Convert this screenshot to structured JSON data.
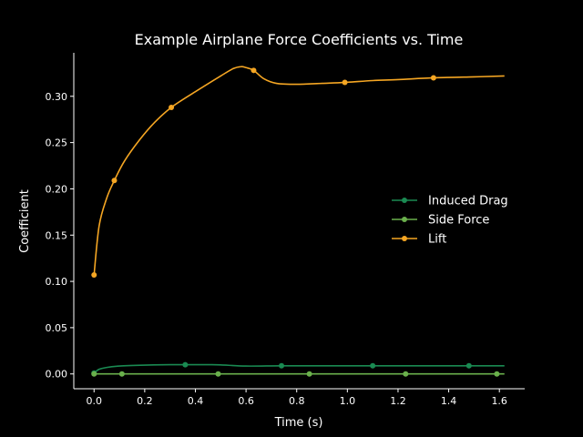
{
  "chart_data": {
    "type": "line",
    "title": "Example Airplane Force Coefficients vs. Time",
    "xlabel": "Time (s)",
    "ylabel": "Coefficient",
    "xlim": [
      -0.08,
      1.7
    ],
    "ylim": [
      -0.016,
      0.347
    ],
    "xticks": [
      0.0,
      0.2,
      0.4,
      0.6,
      0.8,
      1.0,
      1.2,
      1.4,
      1.6
    ],
    "xtick_labels": [
      "0.0",
      "0.2",
      "0.4",
      "0.6",
      "0.8",
      "1.0",
      "1.2",
      "1.4",
      "1.6"
    ],
    "yticks": [
      0.0,
      0.05,
      0.1,
      0.15,
      0.2,
      0.25,
      0.3
    ],
    "ytick_labels": [
      "0.00",
      "0.05",
      "0.10",
      "0.15",
      "0.20",
      "0.25",
      "0.30"
    ],
    "grid": false,
    "legend": "center-right",
    "series": [
      {
        "name": "Induced Drag",
        "color": "#1a8a52",
        "x": [
          0.0,
          0.02,
          0.05,
          0.1,
          0.2,
          0.3,
          0.36,
          0.45,
          0.5,
          0.6,
          0.74,
          0.9,
          1.1,
          1.3,
          1.48,
          1.62
        ],
        "y": [
          0.001,
          0.005,
          0.007,
          0.0085,
          0.0095,
          0.01,
          0.01,
          0.01,
          0.0098,
          0.0085,
          0.0088,
          0.0088,
          0.0088,
          0.0088,
          0.0088,
          0.0088
        ],
        "markers_x": [
          0.0,
          0.36,
          0.74,
          1.1,
          1.48
        ],
        "markers_y": [
          0.001,
          0.01,
          0.0088,
          0.0088,
          0.0088
        ]
      },
      {
        "name": "Side Force",
        "color": "#6ab04c",
        "x": [
          0.0,
          1.62
        ],
        "y": [
          0.0,
          0.0
        ],
        "markers_x": [
          0.0,
          0.11,
          0.49,
          0.85,
          1.23,
          1.59
        ],
        "markers_y": [
          0.0,
          0.0,
          0.0,
          0.0,
          0.0,
          0.0
        ]
      },
      {
        "name": "Lift",
        "color": "#f5a623",
        "x": [
          0.0,
          0.02,
          0.05,
          0.08,
          0.12,
          0.18,
          0.24,
          0.305,
          0.4,
          0.5,
          0.55,
          0.58,
          0.6,
          0.63,
          0.67,
          0.72,
          0.8,
          0.9,
          0.99,
          1.1,
          1.2,
          1.34,
          1.5,
          1.62
        ],
        "y": [
          0.107,
          0.16,
          0.19,
          0.209,
          0.23,
          0.253,
          0.272,
          0.288,
          0.305,
          0.322,
          0.33,
          0.332,
          0.331,
          0.328,
          0.319,
          0.314,
          0.313,
          0.314,
          0.315,
          0.317,
          0.318,
          0.32,
          0.321,
          0.322
        ],
        "markers_x": [
          0.0,
          0.08,
          0.305,
          0.63,
          0.99,
          1.34
        ],
        "markers_y": [
          0.107,
          0.209,
          0.288,
          0.328,
          0.315,
          0.32
        ]
      }
    ]
  }
}
